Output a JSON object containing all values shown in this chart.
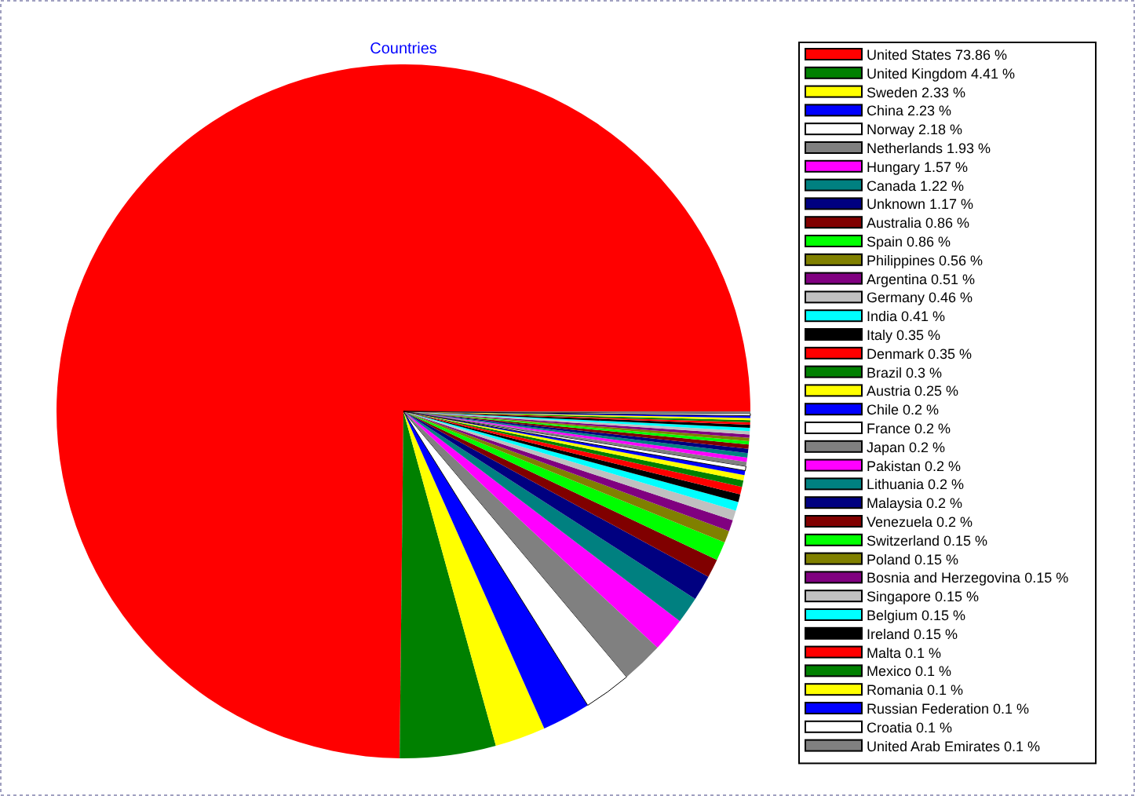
{
  "chart_data": {
    "type": "pie",
    "title": "Countries",
    "legend": "right",
    "categories": [
      "United States",
      "United Kingdom",
      "Sweden",
      "China",
      "Norway",
      "Netherlands",
      "Hungary",
      "Canada",
      "Unknown",
      "Australia",
      "Spain",
      "Philippines",
      "Argentina",
      "Germany",
      "India",
      "Italy",
      "Denmark",
      "Brazil",
      "Austria",
      "Chile",
      "France",
      "Japan",
      "Pakistan",
      "Lithuania",
      "Malaysia",
      "Venezuela",
      "Switzerland",
      "Poland",
      "Bosnia and Herzegovina",
      "Singapore",
      "Belgium",
      "Ireland",
      "Malta",
      "Mexico",
      "Romania",
      "Russian Federation",
      "Croatia",
      "United Arab Emirates"
    ],
    "values": [
      73.86,
      4.41,
      2.33,
      2.23,
      2.18,
      1.93,
      1.57,
      1.22,
      1.17,
      0.86,
      0.86,
      0.56,
      0.51,
      0.46,
      0.41,
      0.35,
      0.35,
      0.3,
      0.25,
      0.2,
      0.2,
      0.2,
      0.2,
      0.2,
      0.2,
      0.2,
      0.15,
      0.15,
      0.15,
      0.15,
      0.15,
      0.15,
      0.1,
      0.1,
      0.1,
      0.1,
      0.1,
      0.1
    ],
    "value_labels": [
      "73.86 %",
      "4.41 %",
      "2.33 %",
      "2.23 %",
      "2.18 %",
      "1.93 %",
      "1.57 %",
      "1.22 %",
      "1.17 %",
      "0.86 %",
      "0.86 %",
      "0.56 %",
      "0.51 %",
      "0.46 %",
      "0.41 %",
      "0.35 %",
      "0.35 %",
      "0.3 %",
      "0.25 %",
      "0.2 %",
      "0.2 %",
      "0.2 %",
      "0.2 %",
      "0.2 %",
      "0.2 %",
      "0.2 %",
      "0.15 %",
      "0.15 %",
      "0.15 %",
      "0.15 %",
      "0.15 %",
      "0.15 %",
      "0.1 %",
      "0.1 %",
      "0.1 %",
      "0.1 %",
      "0.1 %",
      "0.1 %"
    ],
    "colors": [
      "#ff0000",
      "#008000",
      "#ffff00",
      "#0000ff",
      "#ffffff",
      "#808080",
      "#ff00ff",
      "#008080",
      "#000080",
      "#800000",
      "#00ff00",
      "#808000",
      "#800080",
      "#c0c0c0",
      "#00ffff",
      "#000000",
      "#ff0000",
      "#008000",
      "#ffff00",
      "#0000ff",
      "#ffffff",
      "#808080",
      "#ff00ff",
      "#008080",
      "#000080",
      "#800000",
      "#00ff00",
      "#808000",
      "#800080",
      "#c0c0c0",
      "#00ffff",
      "#000000",
      "#ff0000",
      "#008000",
      "#ffff00",
      "#0000ff",
      "#ffffff",
      "#808080"
    ]
  }
}
